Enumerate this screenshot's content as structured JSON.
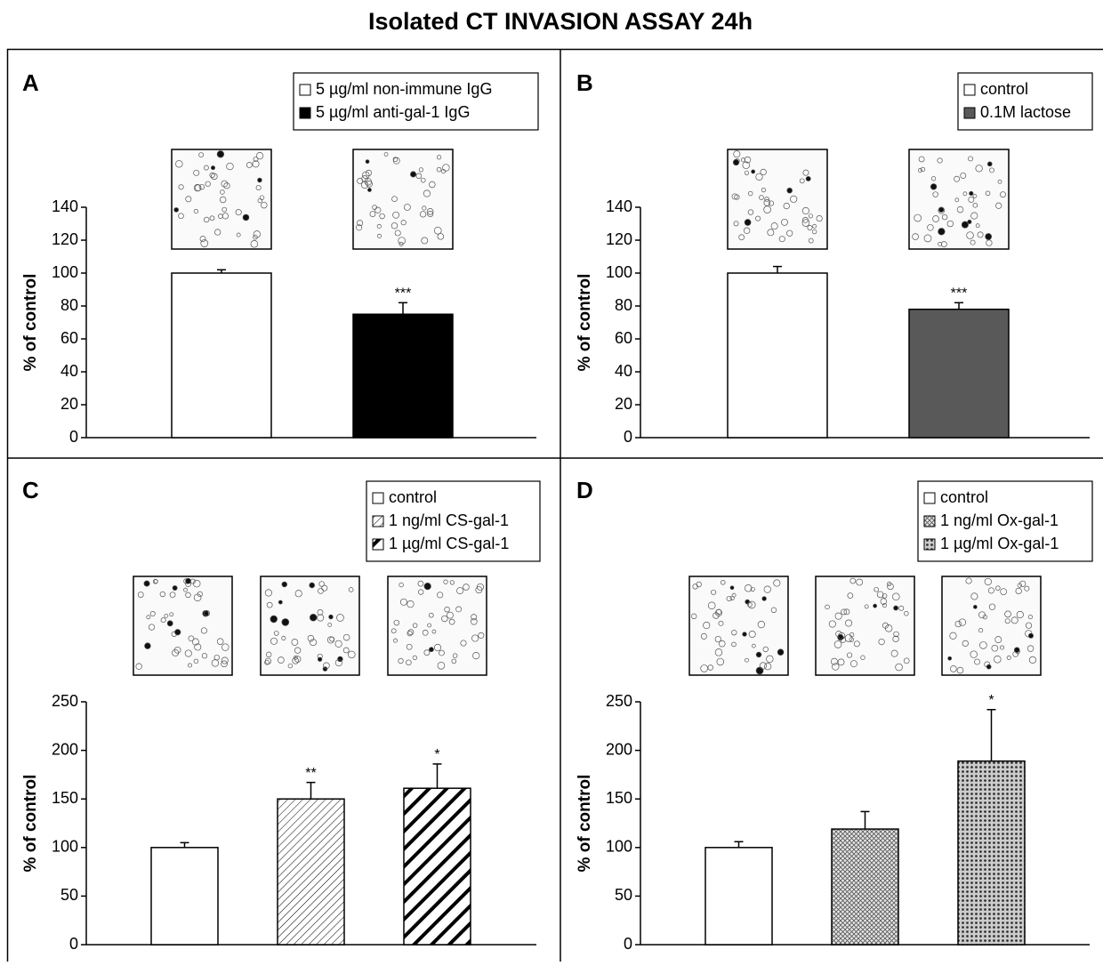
{
  "title": "Isolated CT INVASION ASSAY 24h",
  "chart_data": [
    {
      "type": "bar",
      "panel": "A",
      "y_label": "% of control",
      "ylim": [
        0,
        140
      ],
      "yticks": [
        0,
        20,
        40,
        60,
        80,
        100,
        120,
        140
      ],
      "series": [
        {
          "name": "5 µg/ml non-immune IgG",
          "color": "#ffffff",
          "values": [
            100
          ],
          "errors": [
            2
          ]
        },
        {
          "name": "5 µg/ml anti-gal-1 IgG",
          "color": "#000000",
          "values": [
            75
          ],
          "errors": [
            7
          ],
          "annotation": "***"
        }
      ]
    },
    {
      "type": "bar",
      "panel": "B",
      "y_label": "% of control",
      "ylim": [
        0,
        140
      ],
      "yticks": [
        0,
        20,
        40,
        60,
        80,
        100,
        120,
        140
      ],
      "series": [
        {
          "name": "control",
          "color": "#ffffff",
          "values": [
            100
          ],
          "errors": [
            4
          ]
        },
        {
          "name": "0.1M lactose",
          "color": "#595959",
          "values": [
            78
          ],
          "errors": [
            4
          ],
          "annotation": "***"
        }
      ]
    },
    {
      "type": "bar",
      "panel": "C",
      "y_label": "% of control",
      "ylim": [
        0,
        250
      ],
      "yticks": [
        0,
        50,
        100,
        150,
        200,
        250
      ],
      "series": [
        {
          "name": "control",
          "color": "#ffffff",
          "values": [
            100
          ],
          "errors": [
            5
          ]
        },
        {
          "name": "1 ng/ml CS-gal-1",
          "color": "#000000",
          "pattern": "hatch-thin",
          "values": [
            150
          ],
          "errors": [
            17
          ],
          "annotation": "**"
        },
        {
          "name": "1 µg/ml CS-gal-1",
          "color": "#000000",
          "pattern": "hatch-bold",
          "values": [
            161
          ],
          "errors": [
            25
          ],
          "annotation": "*"
        }
      ]
    },
    {
      "type": "bar",
      "panel": "D",
      "y_label": "% of control",
      "ylim": [
        0,
        250
      ],
      "yticks": [
        0,
        50,
        100,
        150,
        200,
        250
      ],
      "series": [
        {
          "name": "control",
          "color": "#ffffff",
          "values": [
            100
          ],
          "errors": [
            6
          ]
        },
        {
          "name": "1 ng/ml Ox-gal-1",
          "color": "#000000",
          "pattern": "cross",
          "values": [
            119
          ],
          "errors": [
            18
          ]
        },
        {
          "name": "1 µg/ml Ox-gal-1",
          "color": "#000000",
          "pattern": "dots",
          "values": [
            189
          ],
          "errors": [
            53
          ],
          "annotation": "*"
        }
      ]
    }
  ]
}
